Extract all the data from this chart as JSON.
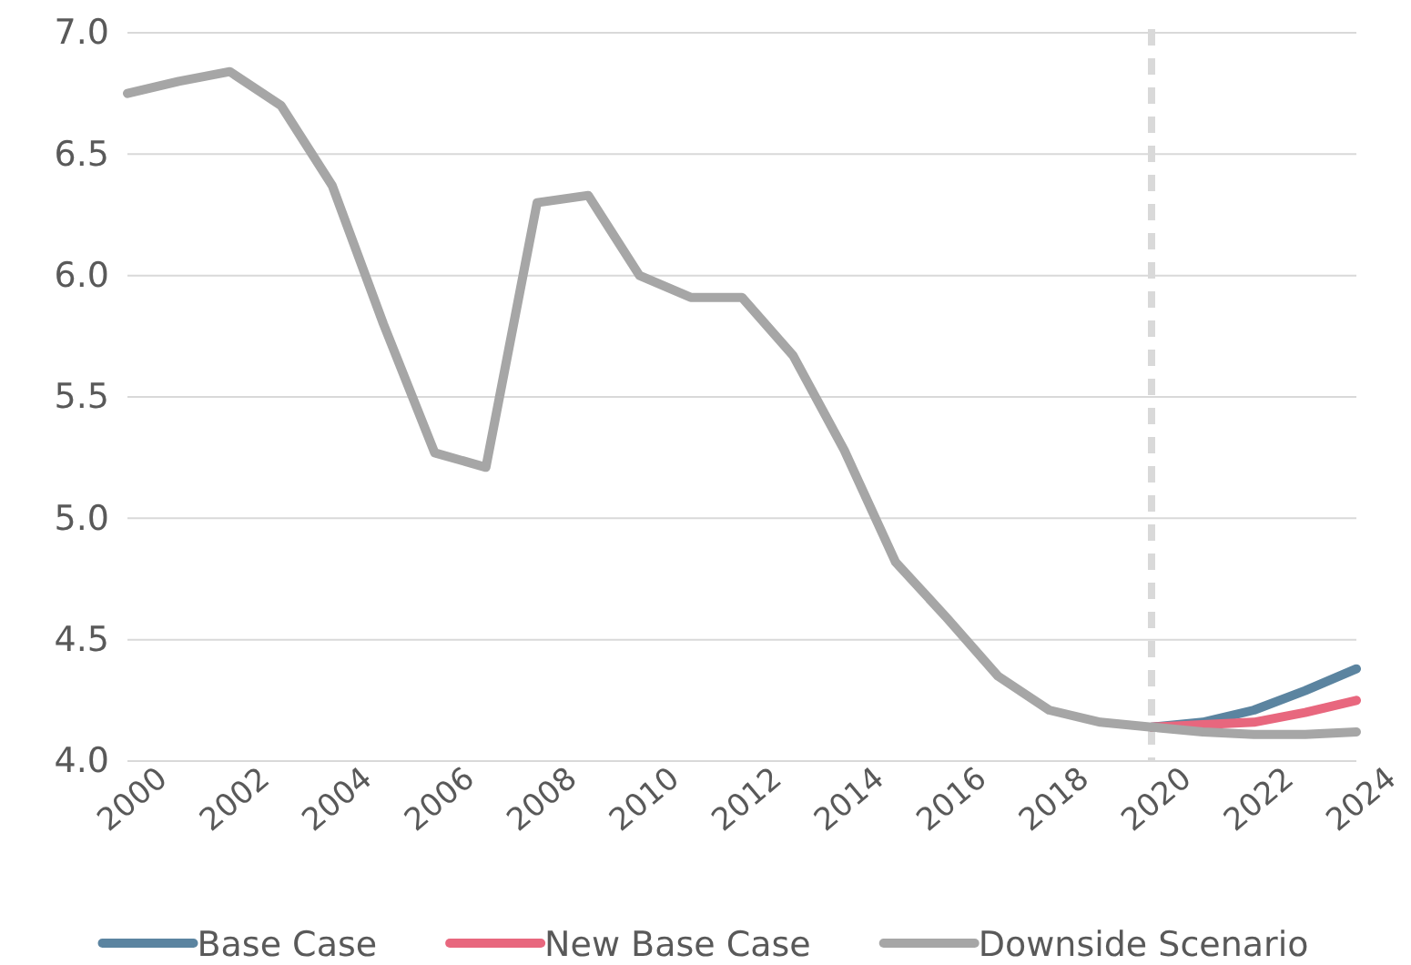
{
  "chart_data": {
    "type": "line",
    "x": [
      2000,
      2001,
      2002,
      2003,
      2004,
      2005,
      2006,
      2007,
      2008,
      2009,
      2010,
      2011,
      2012,
      2013,
      2014,
      2015,
      2016,
      2017,
      2018,
      2019,
      2020,
      2021,
      2022,
      2023,
      2024
    ],
    "series": [
      {
        "name": "Base Case",
        "color": "#5b84a0",
        "x": [
          2020,
          2021,
          2022,
          2023,
          2024
        ],
        "values": [
          4.14,
          4.16,
          4.21,
          4.29,
          4.38
        ]
      },
      {
        "name": "New Base Case",
        "color": "#e8677e",
        "x": [
          2020,
          2021,
          2022,
          2023,
          2024
        ],
        "values": [
          4.14,
          4.15,
          4.16,
          4.2,
          4.25
        ]
      },
      {
        "name": "Downside Scenario",
        "color": "#a6a6a6",
        "values": [
          6.75,
          6.8,
          6.84,
          6.7,
          6.37,
          5.8,
          5.27,
          5.21,
          6.3,
          6.33,
          6.0,
          5.91,
          5.91,
          5.67,
          5.28,
          4.82,
          4.59,
          4.35,
          4.21,
          4.16,
          4.14,
          4.12,
          4.11,
          4.11,
          4.12
        ]
      }
    ],
    "xlim": [
      2000,
      2024
    ],
    "xticks": [
      2000,
      2002,
      2004,
      2006,
      2008,
      2010,
      2012,
      2014,
      2016,
      2018,
      2020,
      2022,
      2024
    ],
    "ylim": [
      4.0,
      7.0
    ],
    "yticks": [
      {
        "value": 4.0,
        "label": "4.0"
      },
      {
        "value": 4.5,
        "label": "4.5"
      },
      {
        "value": 5.0,
        "label": "5.0"
      },
      {
        "value": 5.5,
        "label": "5.5"
      },
      {
        "value": 6.0,
        "label": "6.0"
      },
      {
        "value": 6.5,
        "label": "6.5"
      },
      {
        "value": 7.0,
        "label": "7.0"
      }
    ],
    "grid": "y",
    "legend": "bottom",
    "marker": "none",
    "line_style": "solid",
    "ref_lines": [
      {
        "axis": "x",
        "value": 2020,
        "color": "#d9d9d9",
        "line_style": "dashed"
      }
    ]
  }
}
